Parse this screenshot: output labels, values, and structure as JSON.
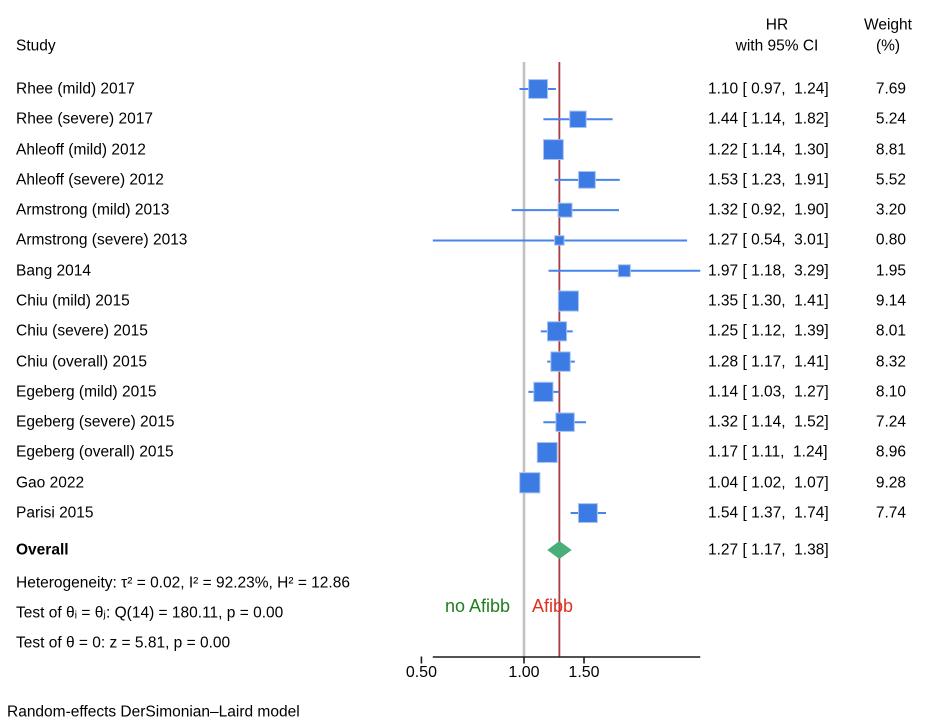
{
  "columns": {
    "study": "Study",
    "hr_line1": "HR",
    "hr_line2": "with 95% CI",
    "weight_line1": "Weight",
    "weight_line2": "(%)"
  },
  "chart_data": {
    "type": "forest",
    "effect_measure": "HR",
    "x_axis": {
      "scale": "log",
      "ticks": [
        0.5,
        1.0,
        1.5
      ],
      "tick_labels": [
        "0.50",
        "1.00",
        "1.50"
      ]
    },
    "null_value": 1.0,
    "region_labels": {
      "left": "no Afibb",
      "right": "Afibb"
    },
    "studies": [
      {
        "label": "Rhee (mild) 2017",
        "hr": 1.1,
        "lo": 0.97,
        "hi": 1.24,
        "weight": 7.69,
        "ci_label": "1.10 [ 0.97,  1.24]",
        "weight_label": "7.69"
      },
      {
        "label": "Rhee (severe) 2017",
        "hr": 1.44,
        "lo": 1.14,
        "hi": 1.82,
        "weight": 5.24,
        "ci_label": "1.44 [ 1.14,  1.82]",
        "weight_label": "5.24"
      },
      {
        "label": "Ahleoff (mild) 2012",
        "hr": 1.22,
        "lo": 1.14,
        "hi": 1.3,
        "weight": 8.81,
        "ci_label": "1.22 [ 1.14,  1.30]",
        "weight_label": "8.81"
      },
      {
        "label": "Ahleoff (severe) 2012",
        "hr": 1.53,
        "lo": 1.23,
        "hi": 1.91,
        "weight": 5.52,
        "ci_label": "1.53 [ 1.23,  1.91]",
        "weight_label": "5.52"
      },
      {
        "label": "Armstrong (mild) 2013",
        "hr": 1.32,
        "lo": 0.92,
        "hi": 1.9,
        "weight": 3.2,
        "ci_label": "1.32 [ 0.92,  1.90]",
        "weight_label": "3.20"
      },
      {
        "label": "Armstrong (severe) 2013",
        "hr": 1.27,
        "lo": 0.54,
        "hi": 3.01,
        "weight": 0.8,
        "ci_label": "1.27 [ 0.54,  3.01]",
        "weight_label": "0.80"
      },
      {
        "label": "Bang 2014",
        "hr": 1.97,
        "lo": 1.18,
        "hi": 3.29,
        "weight": 1.95,
        "ci_label": "1.97 [ 1.18,  3.29]",
        "weight_label": "1.95"
      },
      {
        "label": "Chiu (mild) 2015",
        "hr": 1.35,
        "lo": 1.3,
        "hi": 1.41,
        "weight": 9.14,
        "ci_label": "1.35 [ 1.30,  1.41]",
        "weight_label": "9.14"
      },
      {
        "label": "Chiu (severe) 2015",
        "hr": 1.25,
        "lo": 1.12,
        "hi": 1.39,
        "weight": 8.01,
        "ci_label": "1.25 [ 1.12,  1.39]",
        "weight_label": "8.01"
      },
      {
        "label": "Chiu (overall) 2015",
        "hr": 1.28,
        "lo": 1.17,
        "hi": 1.41,
        "weight": 8.32,
        "ci_label": "1.28 [ 1.17,  1.41]",
        "weight_label": "8.32"
      },
      {
        "label": "Egeberg (mild) 2015",
        "hr": 1.14,
        "lo": 1.03,
        "hi": 1.27,
        "weight": 8.1,
        "ci_label": "1.14 [ 1.03,  1.27]",
        "weight_label": "8.10"
      },
      {
        "label": "Egeberg (severe) 2015",
        "hr": 1.32,
        "lo": 1.14,
        "hi": 1.52,
        "weight": 7.24,
        "ci_label": "1.32 [ 1.14,  1.52]",
        "weight_label": "7.24"
      },
      {
        "label": "Egeberg (overall) 2015",
        "hr": 1.17,
        "lo": 1.11,
        "hi": 1.24,
        "weight": 8.96,
        "ci_label": "1.17 [ 1.11,  1.24]",
        "weight_label": "8.96"
      },
      {
        "label": "Gao 2022",
        "hr": 1.04,
        "lo": 1.02,
        "hi": 1.07,
        "weight": 9.28,
        "ci_label": "1.04 [ 1.02,  1.07]",
        "weight_label": "9.28"
      },
      {
        "label": "Parisi 2015",
        "hr": 1.54,
        "lo": 1.37,
        "hi": 1.74,
        "weight": 7.74,
        "ci_label": "1.54 [ 1.37,  1.74]",
        "weight_label": "7.74"
      }
    ],
    "overall": {
      "label": "Overall",
      "hr": 1.27,
      "lo": 1.17,
      "hi": 1.38,
      "ci_label": "1.27 [ 1.17,  1.38]"
    },
    "stats": {
      "heterogeneity": "Heterogeneity: τ² = 0.02, I² = 92.23%, H² = 12.86",
      "q_test": "Test of θᵢ = θⱼ: Q(14) = 180.11, p = 0.00",
      "z_test": "Test of θ = 0: z = 5.81, p = 0.00"
    },
    "footnote": "Random-effects DerSimonian–Laird model",
    "colors": {
      "marker_blue": "#3d7be4",
      "marker_halo": "#a6c3f2",
      "ci_blue": "#4584ea",
      "diamond_green": "#47af77",
      "null_line_gray": "#c2c2c2",
      "overall_line_red": "#a93a40",
      "label_green": "#1f7d1f",
      "label_red": "#e0301e",
      "axis_black": "#1a1a1a"
    }
  }
}
